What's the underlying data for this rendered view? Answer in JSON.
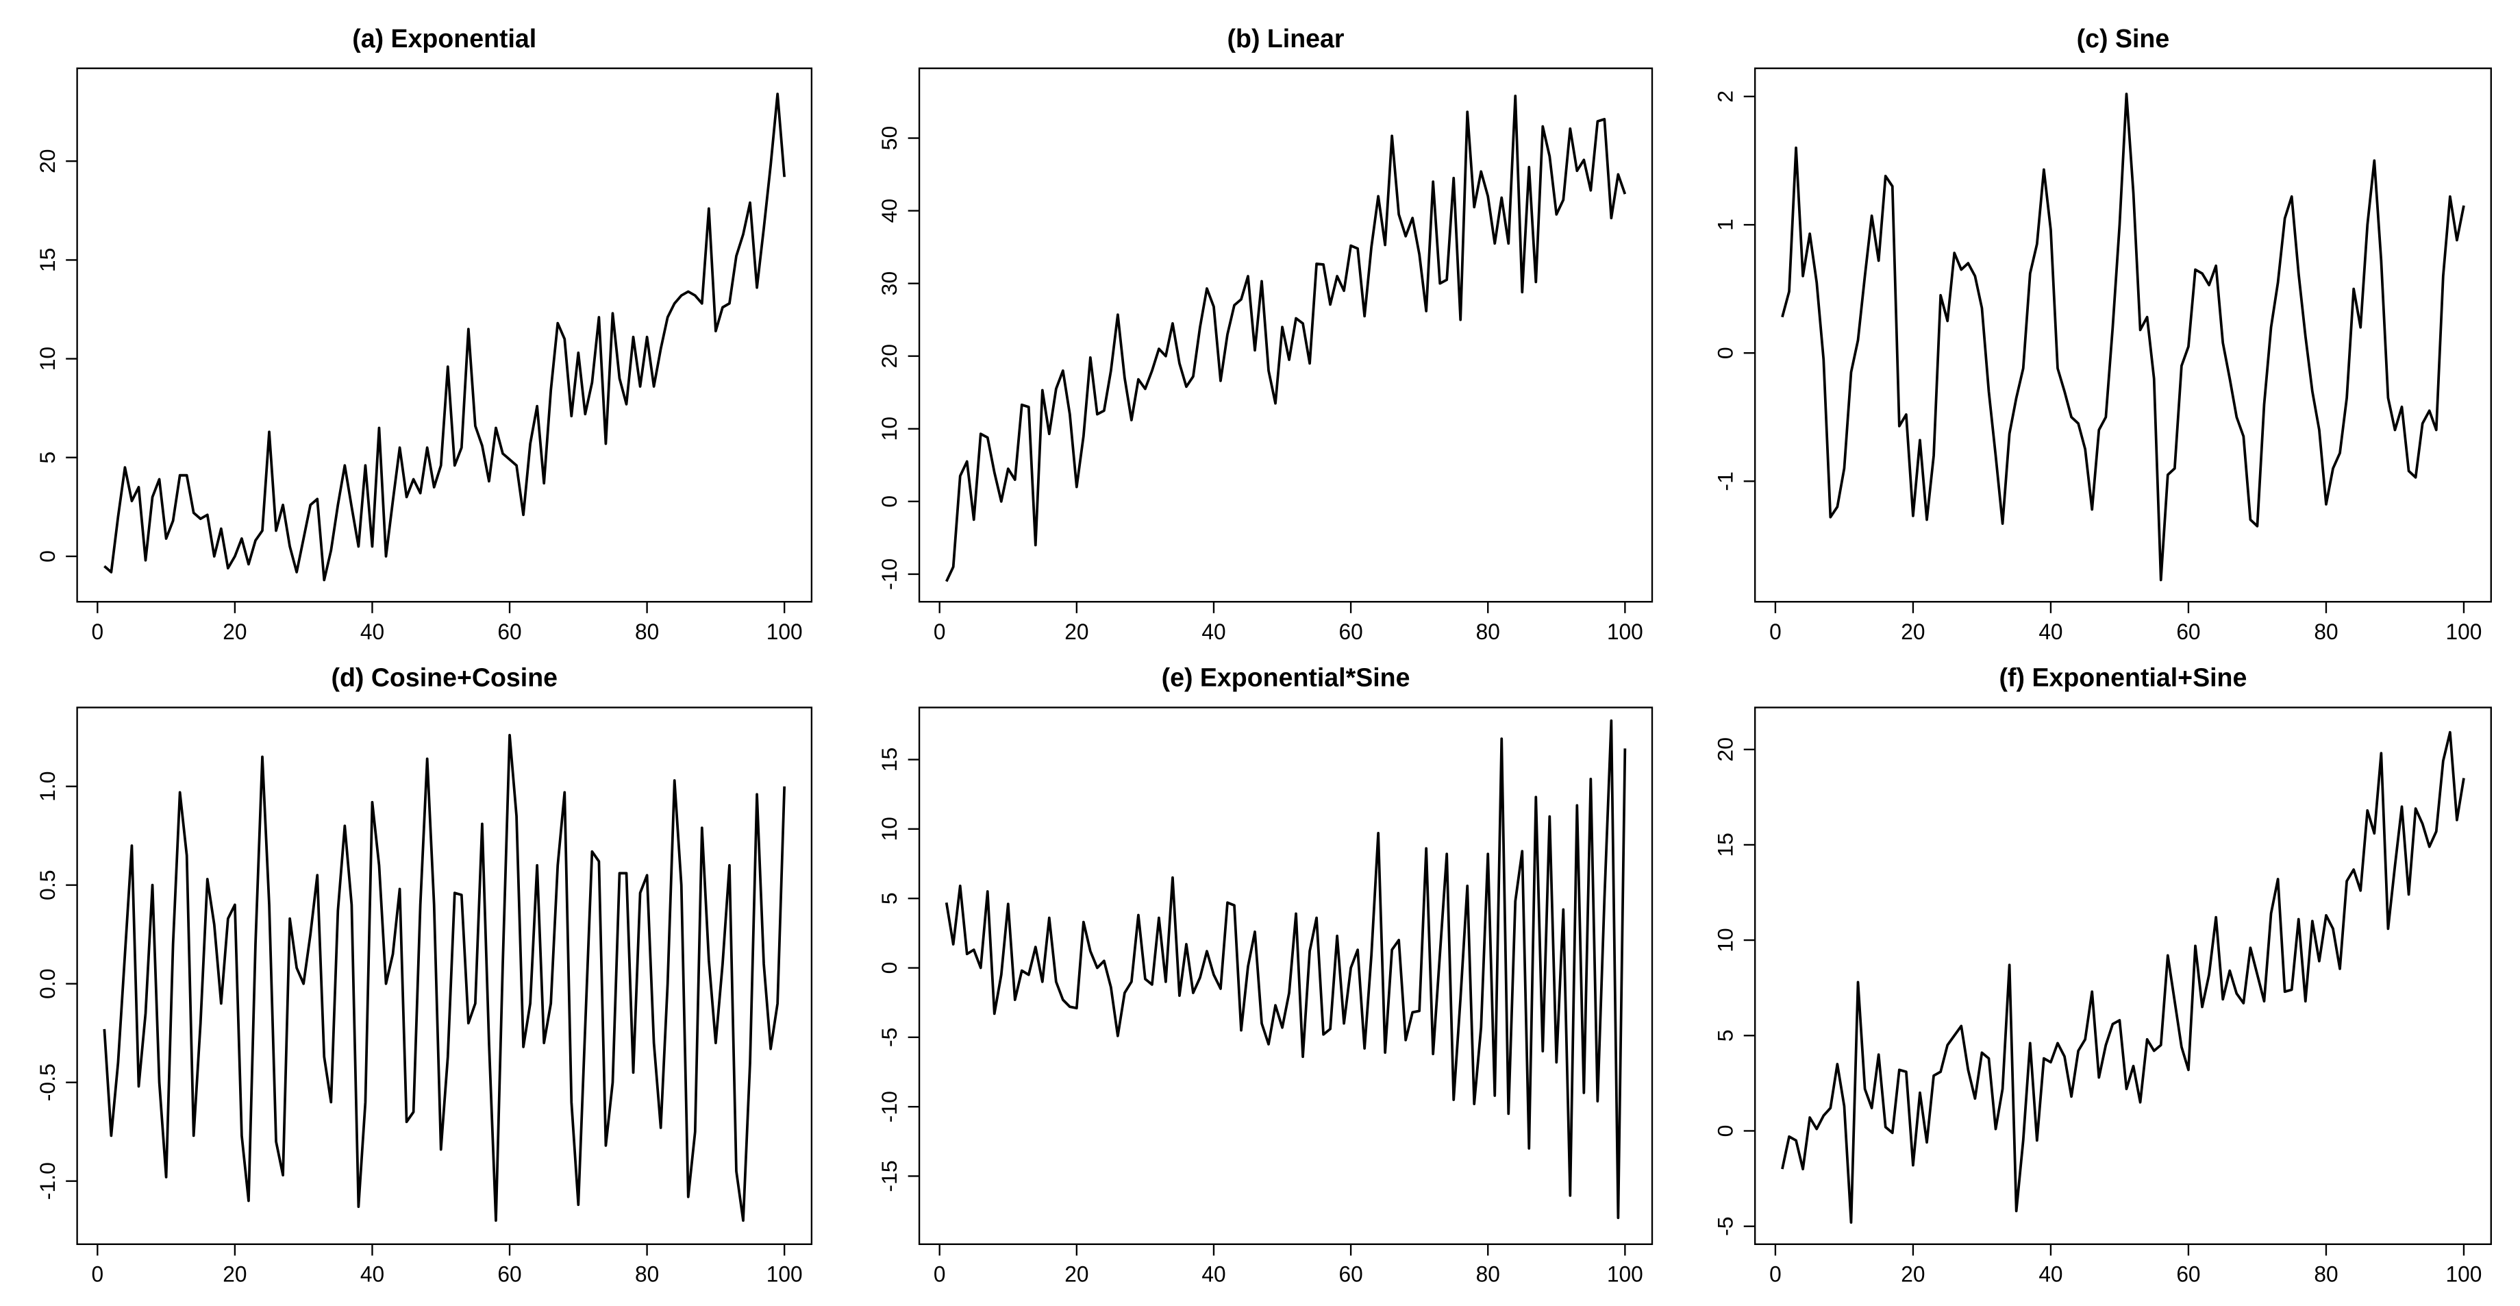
{
  "chart_data": [
    {
      "type": "line",
      "title": "(a) Exponential",
      "color": "#000000",
      "x": [
        1,
        2,
        3,
        4,
        5,
        6,
        7,
        8,
        9,
        10,
        11,
        12,
        13,
        14,
        15,
        16,
        17,
        18,
        19,
        20,
        21,
        22,
        23,
        24,
        25,
        26,
        27,
        28,
        29,
        30,
        31,
        32,
        33,
        34,
        35,
        36,
        37,
        38,
        39,
        40,
        41,
        42,
        43,
        44,
        45,
        46,
        47,
        48,
        49,
        50,
        51,
        52,
        53,
        54,
        55,
        56,
        57,
        58,
        59,
        60,
        61,
        62,
        63,
        64,
        65,
        66,
        67,
        68,
        69,
        70,
        71,
        72,
        73,
        74,
        75,
        76,
        77,
        78,
        79,
        80,
        81,
        82,
        83,
        84,
        85,
        86,
        87,
        88,
        89,
        90,
        91,
        92,
        93,
        94,
        95,
        96,
        97,
        98,
        99,
        100
      ],
      "values": [
        -0.5,
        -0.8,
        2.0,
        4.5,
        2.8,
        3.5,
        -0.2,
        3.0,
        3.9,
        0.9,
        1.8,
        4.1,
        4.1,
        2.2,
        1.9,
        2.1,
        0.0,
        1.4,
        -0.6,
        0.0,
        0.9,
        -0.4,
        0.8,
        1.3,
        6.3,
        1.3,
        2.6,
        0.5,
        -0.8,
        0.9,
        2.6,
        2.9,
        -1.2,
        0.3,
        2.6,
        4.6,
        2.5,
        0.5,
        4.6,
        0.5,
        6.5,
        0.0,
        2.8,
        5.5,
        3.0,
        3.9,
        3.2,
        5.5,
        3.5,
        4.6,
        9.6,
        4.6,
        5.5,
        11.5,
        6.6,
        5.6,
        3.8,
        6.5,
        5.2,
        4.9,
        4.6,
        2.1,
        5.7,
        7.6,
        3.7,
        8.4,
        11.8,
        11.0,
        7.1,
        10.3,
        7.2,
        8.8,
        12.1,
        5.7,
        12.3,
        9.0,
        7.7,
        11.1,
        8.6,
        11.1,
        8.6,
        10.5,
        12.1,
        12.8,
        13.2,
        13.4,
        13.2,
        12.8,
        17.6,
        11.4,
        12.6,
        12.8,
        15.2,
        16.3,
        17.9,
        13.6,
        16.6,
        19.8,
        23.4,
        19.2
      ],
      "xlim": [
        -2.96,
        103.96
      ],
      "xticks": [
        0,
        20,
        40,
        60,
        80,
        100
      ],
      "ylim": [
        -2.3,
        24.7
      ],
      "yticks": [
        0,
        5,
        10,
        15,
        20
      ]
    },
    {
      "type": "line",
      "title": "(b) Linear",
      "color": "#000000",
      "x": [
        1,
        2,
        3,
        4,
        5,
        6,
        7,
        8,
        9,
        10,
        11,
        12,
        13,
        14,
        15,
        16,
        17,
        18,
        19,
        20,
        21,
        22,
        23,
        24,
        25,
        26,
        27,
        28,
        29,
        30,
        31,
        32,
        33,
        34,
        35,
        36,
        37,
        38,
        39,
        40,
        41,
        42,
        43,
        44,
        45,
        46,
        47,
        48,
        49,
        50,
        51,
        52,
        53,
        54,
        55,
        56,
        57,
        58,
        59,
        60,
        61,
        62,
        63,
        64,
        65,
        66,
        67,
        68,
        69,
        70,
        71,
        72,
        73,
        74,
        75,
        76,
        77,
        78,
        79,
        80,
        81,
        82,
        83,
        84,
        85,
        86,
        87,
        88,
        89,
        90,
        91,
        92,
        93,
        94,
        95,
        96,
        97,
        98,
        99,
        100
      ],
      "values": [
        -11,
        -9,
        3.5,
        5.5,
        -2.5,
        9.3,
        8.8,
        4,
        0,
        4.5,
        3,
        13.3,
        13,
        -6,
        15.3,
        9.3,
        15.5,
        18,
        12,
        2,
        9,
        19.8,
        12,
        12.5,
        18,
        25.7,
        17,
        11.2,
        16.8,
        15.5,
        18,
        21,
        20,
        24.5,
        19,
        15.8,
        17.2,
        24,
        29.3,
        26.8,
        16.6,
        23,
        27,
        27.8,
        31,
        20.8,
        30.3,
        18,
        13.5,
        24,
        19.5,
        25.2,
        24.5,
        19,
        32.7,
        32.6,
        27.1,
        31,
        29,
        35.2,
        34.8,
        25.5,
        35,
        42,
        35.3,
        50.3,
        39.5,
        36.5,
        39,
        34,
        26.2,
        44,
        30,
        30.5,
        44.5,
        25,
        53.6,
        40.5,
        45.4,
        42,
        35.5,
        41.8,
        35.5,
        55.8,
        28.8,
        46,
        30.2,
        51.6,
        47.5,
        39.5,
        41.5,
        51.3,
        45.5,
        47,
        42.8,
        52.3,
        52.6,
        39,
        45,
        42.3
      ],
      "xlim": [
        -2.96,
        103.96
      ],
      "xticks": [
        0,
        20,
        40,
        60,
        80,
        100
      ],
      "ylim": [
        -13.8,
        59.6
      ],
      "yticks": [
        -10,
        0,
        10,
        20,
        30,
        40,
        50
      ]
    },
    {
      "type": "line",
      "title": "(c) Sine",
      "color": "#000000",
      "x": [
        1,
        2,
        3,
        4,
        5,
        6,
        7,
        8,
        9,
        10,
        11,
        12,
        13,
        14,
        15,
        16,
        17,
        18,
        19,
        20,
        21,
        22,
        23,
        24,
        25,
        26,
        27,
        28,
        29,
        30,
        31,
        32,
        33,
        34,
        35,
        36,
        37,
        38,
        39,
        40,
        41,
        42,
        43,
        44,
        45,
        46,
        47,
        48,
        49,
        50,
        51,
        52,
        53,
        54,
        55,
        56,
        57,
        58,
        59,
        60,
        61,
        62,
        63,
        64,
        65,
        66,
        67,
        68,
        69,
        70,
        71,
        72,
        73,
        74,
        75,
        76,
        77,
        78,
        79,
        80,
        81,
        82,
        83,
        84,
        85,
        86,
        87,
        88,
        89,
        90,
        91,
        92,
        93,
        94,
        95,
        96,
        97,
        98,
        99,
        100
      ],
      "values": [
        0.28,
        0.48,
        1.6,
        0.6,
        0.93,
        0.55,
        -0.05,
        -1.28,
        -1.2,
        -0.9,
        -0.15,
        0.1,
        0.6,
        1.07,
        0.72,
        1.38,
        1.3,
        -0.57,
        -0.48,
        -1.27,
        -0.68,
        -1.3,
        -0.8,
        0.45,
        0.25,
        0.78,
        0.65,
        0.7,
        0.6,
        0.35,
        -0.3,
        -0.8,
        -1.33,
        -0.63,
        -0.35,
        -0.12,
        0.62,
        0.85,
        1.43,
        0.96,
        -0.12,
        -0.3,
        -0.5,
        -0.55,
        -0.75,
        -1.22,
        -0.6,
        -0.5,
        0.2,
        1.0,
        2.02,
        1.25,
        0.18,
        0.28,
        -0.2,
        -1.77,
        -0.95,
        -0.9,
        -0.1,
        0.05,
        0.65,
        0.62,
        0.53,
        0.68,
        0.08,
        -0.2,
        -0.5,
        -0.65,
        -1.3,
        -1.35,
        -0.4,
        0.2,
        0.55,
        1.05,
        1.22,
        0.62,
        0.13,
        -0.3,
        -0.6,
        -1.18,
        -0.9,
        -0.78,
        -0.35,
        0.5,
        0.2,
        1.0,
        1.5,
        0.72,
        -0.35,
        -0.6,
        -0.42,
        -0.92,
        -0.97,
        -0.55,
        -0.45,
        -0.6,
        0.6,
        1.22,
        0.88,
        1.15
      ],
      "xlim": [
        -2.96,
        103.96
      ],
      "xticks": [
        0,
        20,
        40,
        60,
        80,
        100
      ],
      "ylim": [
        -1.94,
        2.22
      ],
      "yticks": [
        -1,
        0,
        1,
        2
      ]
    },
    {
      "type": "line",
      "title": "(d) Cosine+Cosine",
      "color": "#000000",
      "x": [
        1,
        2,
        3,
        4,
        5,
        6,
        7,
        8,
        9,
        10,
        11,
        12,
        13,
        14,
        15,
        16,
        17,
        18,
        19,
        20,
        21,
        22,
        23,
        24,
        25,
        26,
        27,
        28,
        29,
        30,
        31,
        32,
        33,
        34,
        35,
        36,
        37,
        38,
        39,
        40,
        41,
        42,
        43,
        44,
        45,
        46,
        47,
        48,
        49,
        50,
        51,
        52,
        53,
        54,
        55,
        56,
        57,
        58,
        59,
        60,
        61,
        62,
        63,
        64,
        65,
        66,
        67,
        68,
        69,
        70,
        71,
        72,
        73,
        74,
        75,
        76,
        77,
        78,
        79,
        80,
        81,
        82,
        83,
        84,
        85,
        86,
        87,
        88,
        89,
        90,
        91,
        92,
        93,
        94,
        95,
        96,
        97,
        98,
        99,
        100
      ],
      "values": [
        -0.23,
        -0.77,
        -0.4,
        0.15,
        0.7,
        -0.52,
        -0.15,
        0.5,
        -0.5,
        -0.98,
        0.2,
        0.97,
        0.65,
        -0.77,
        -0.2,
        0.53,
        0.3,
        -0.1,
        0.33,
        0.4,
        -0.77,
        -1.1,
        0.2,
        1.15,
        0.4,
        -0.8,
        -0.97,
        0.33,
        0.08,
        0.0,
        0.25,
        0.55,
        -0.37,
        -0.6,
        0.37,
        0.8,
        0.4,
        -1.13,
        -0.6,
        0.92,
        0.6,
        0.0,
        0.15,
        0.48,
        -0.7,
        -0.65,
        0.4,
        1.14,
        0.4,
        -0.84,
        -0.37,
        0.46,
        0.45,
        -0.2,
        -0.1,
        0.81,
        -0.3,
        -1.2,
        0.1,
        1.26,
        0.85,
        -0.32,
        -0.1,
        0.6,
        -0.3,
        -0.1,
        0.6,
        0.97,
        -0.6,
        -1.12,
        -0.22,
        0.67,
        0.62,
        -0.82,
        -0.5,
        0.56,
        0.56,
        -0.45,
        0.46,
        0.55,
        -0.3,
        -0.73,
        0.0,
        1.03,
        0.5,
        -1.08,
        -0.75,
        0.79,
        0.12,
        -0.3,
        0.1,
        0.6,
        -0.95,
        -1.2,
        -0.4,
        0.96,
        0.1,
        -0.33,
        -0.1,
        1.0
      ],
      "xlim": [
        -2.96,
        103.96
      ],
      "xticks": [
        0,
        20,
        40,
        60,
        80,
        100
      ],
      "ylim": [
        -1.32,
        1.4
      ],
      "yticks": [
        {
          "value": -1,
          "label": "-1.0"
        },
        -0.5,
        {
          "value": 0,
          "label": "0.0"
        },
        0.5,
        {
          "value": 1,
          "label": "1.0"
        }
      ]
    },
    {
      "type": "line",
      "title": "(e) Exponential*Sine",
      "color": "#000000",
      "x": [
        1,
        2,
        3,
        4,
        5,
        6,
        7,
        8,
        9,
        10,
        11,
        12,
        13,
        14,
        15,
        16,
        17,
        18,
        19,
        20,
        21,
        22,
        23,
        24,
        25,
        26,
        27,
        28,
        29,
        30,
        31,
        32,
        33,
        34,
        35,
        36,
        37,
        38,
        39,
        40,
        41,
        42,
        43,
        44,
        45,
        46,
        47,
        48,
        49,
        50,
        51,
        52,
        53,
        54,
        55,
        56,
        57,
        58,
        59,
        60,
        61,
        62,
        63,
        64,
        65,
        66,
        67,
        68,
        69,
        70,
        71,
        72,
        73,
        74,
        75,
        76,
        77,
        78,
        79,
        80,
        81,
        82,
        83,
        84,
        85,
        86,
        87,
        88,
        89,
        90,
        91,
        92,
        93,
        94,
        95,
        96,
        97,
        98,
        99,
        100
      ],
      "values": [
        4.7,
        1.7,
        5.9,
        1,
        1.3,
        0,
        5.5,
        -3.3,
        -0.5,
        4.6,
        -2.3,
        -0.2,
        -0.5,
        1.5,
        -1,
        3.6,
        -1,
        -2.3,
        -2.8,
        -2.9,
        3.3,
        1.2,
        0,
        0.5,
        -1.4,
        -4.9,
        -1.8,
        -1,
        3.8,
        -0.8,
        -1.2,
        3.6,
        -1,
        6.5,
        -2,
        1.7,
        -1.8,
        -0.7,
        1.2,
        -0.5,
        -1.5,
        4.7,
        4.5,
        -4.5,
        0.1,
        2.6,
        -4,
        -5.5,
        -2.7,
        -4.3,
        -1.8,
        3.9,
        -6.4,
        1.2,
        3.6,
        -4.8,
        -4.4,
        2.3,
        -4,
        0,
        1.3,
        -5.8,
        0.9,
        9.7,
        -6.1,
        1.3,
        2.0,
        -5.2,
        -3.2,
        -3.1,
        8.6,
        -6.2,
        1,
        8.2,
        -9.5,
        -2.2,
        5.9,
        -9.8,
        -4.3,
        8.2,
        -9.2,
        16.5,
        -10.5,
        4.8,
        8.4,
        -13,
        12.3,
        -6,
        10.9,
        -6.8,
        4.2,
        -16.4,
        11.7,
        -9,
        13.6,
        -9.6,
        5,
        17.8,
        -18,
        15.8
      ],
      "xlim": [
        -2.96,
        103.96
      ],
      "xticks": [
        0,
        20,
        40,
        60,
        80,
        100
      ],
      "ylim": [
        -19.9,
        18.75
      ],
      "yticks": [
        -15,
        -10,
        -5,
        0,
        5,
        10,
        15
      ]
    },
    {
      "type": "line",
      "title": "(f) Exponential+Sine",
      "color": "#000000",
      "x": [
        1,
        2,
        3,
        4,
        5,
        6,
        7,
        8,
        9,
        10,
        11,
        12,
        13,
        14,
        15,
        16,
        17,
        18,
        19,
        20,
        21,
        22,
        23,
        24,
        25,
        26,
        27,
        28,
        29,
        30,
        31,
        32,
        33,
        34,
        35,
        36,
        37,
        38,
        39,
        40,
        41,
        42,
        43,
        44,
        45,
        46,
        47,
        48,
        49,
        50,
        51,
        52,
        53,
        54,
        55,
        56,
        57,
        58,
        59,
        60,
        61,
        62,
        63,
        64,
        65,
        66,
        67,
        68,
        69,
        70,
        71,
        72,
        73,
        74,
        75,
        76,
        77,
        78,
        79,
        80,
        81,
        82,
        83,
        84,
        85,
        86,
        87,
        88,
        89,
        90,
        91,
        92,
        93,
        94,
        95,
        96,
        97,
        98,
        99,
        100
      ],
      "values": [
        -2,
        -0.3,
        -0.5,
        -2,
        0.7,
        0.1,
        0.8,
        1.2,
        3.5,
        1.3,
        -4.8,
        7.8,
        2.2,
        1.2,
        4,
        0.2,
        -0.1,
        3.2,
        3.1,
        -1.8,
        2,
        -0.6,
        2.9,
        3.1,
        4.5,
        5,
        5.5,
        3.2,
        1.7,
        4.1,
        3.8,
        0.1,
        2.2,
        8.7,
        -4.2,
        -0.5,
        4.6,
        -0.5,
        3.8,
        3.6,
        4.6,
        3.9,
        1.8,
        4.2,
        4.8,
        7.3,
        2.8,
        4.5,
        5.6,
        5.8,
        2.2,
        3.4,
        1.5,
        4.8,
        4.2,
        4.5,
        9.2,
        6.8,
        4.4,
        3.2,
        9.7,
        6.5,
        8.2,
        11.2,
        6.9,
        8.4,
        7.2,
        6.7,
        9.6,
        8.2,
        6.8,
        11.4,
        13.2,
        7.3,
        7.4,
        11.1,
        6.8,
        11,
        8.9,
        11.3,
        10.6,
        8.5,
        13.1,
        13.7,
        12.6,
        16.8,
        15.6,
        19.8,
        10.6,
        13.9,
        17,
        12.4,
        16.9,
        16.1,
        14.9,
        15.7,
        19.4,
        20.9,
        16.3,
        18.5
      ],
      "xlim": [
        -2.96,
        103.96
      ],
      "xticks": [
        0,
        20,
        40,
        60,
        80,
        100
      ],
      "ylim": [
        -5.94,
        22.2
      ],
      "yticks": [
        -5,
        0,
        5,
        10,
        15,
        20
      ]
    }
  ]
}
